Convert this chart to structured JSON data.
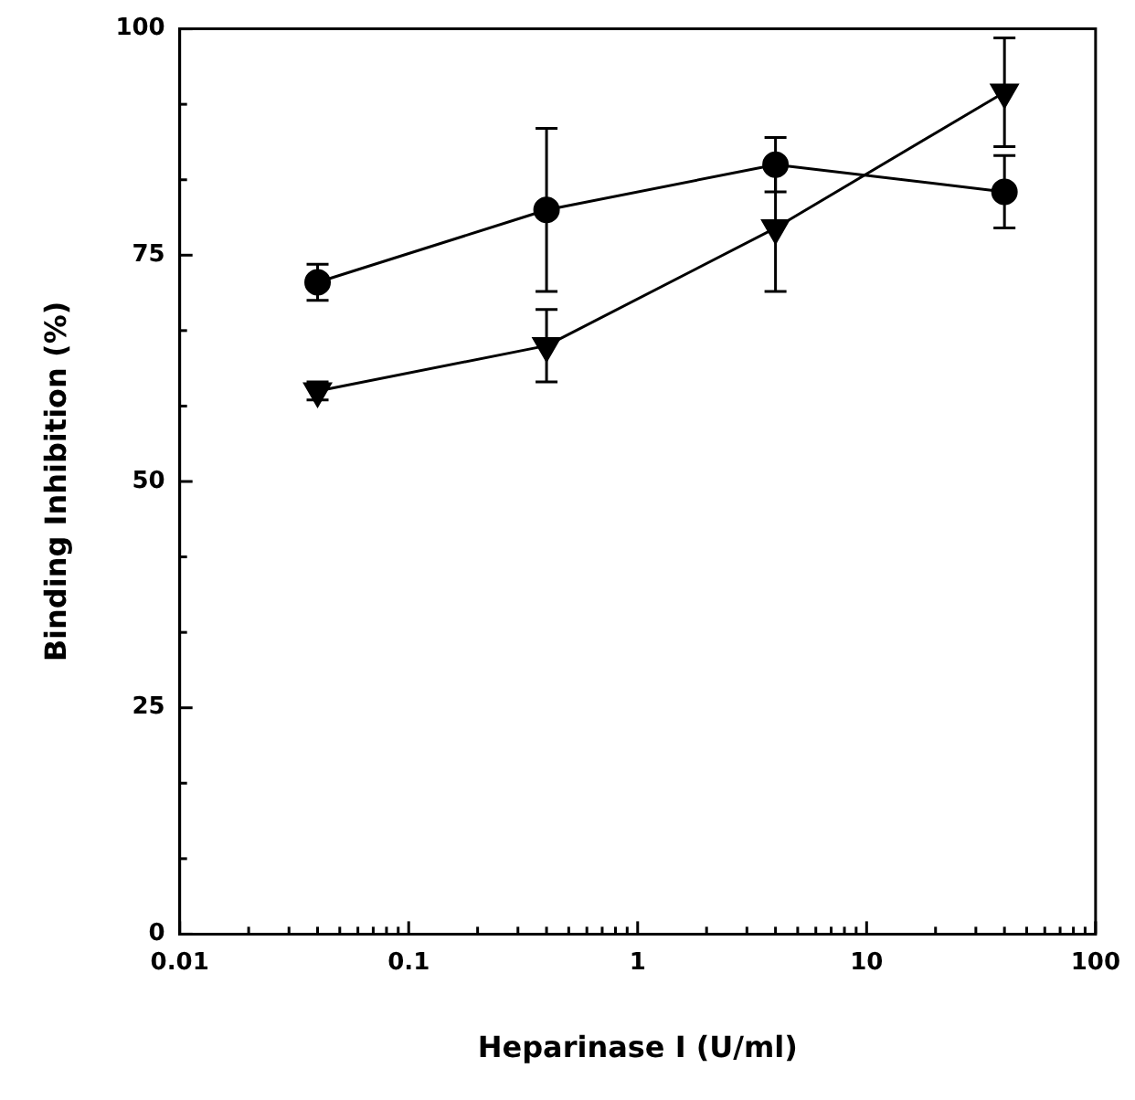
{
  "chart_data": {
    "type": "line",
    "xlabel": "Heparinase I (U/ml)",
    "ylabel": "Binding Inhibition (%)",
    "log": "x",
    "grid": false,
    "legend": false,
    "line_style": "solid",
    "x": [
      0.04,
      0.4,
      4,
      40
    ],
    "series": [
      {
        "color": "#000000",
        "marker": "circle",
        "values": [
          72,
          80,
          85,
          82
        ],
        "errors": [
          2,
          9,
          3,
          4
        ]
      },
      {
        "color": "#000000",
        "marker": "triangle",
        "values": [
          60,
          65,
          78,
          93
        ],
        "errors": [
          1,
          4,
          7,
          6
        ]
      }
    ],
    "xlim": [
      0.01,
      100
    ],
    "xticks": [
      0.01,
      {
        "value": 0.02,
        "label": null
      },
      {
        "value": 0.03,
        "label": null
      },
      {
        "value": 0.04,
        "label": null
      },
      {
        "value": 0.05,
        "label": null
      },
      {
        "value": 0.06,
        "label": null
      },
      {
        "value": 0.07,
        "label": null
      },
      {
        "value": 0.08,
        "label": null
      },
      {
        "value": 0.09,
        "label": null
      },
      0.1,
      {
        "value": 0.2,
        "label": null
      },
      {
        "value": 0.3,
        "label": null
      },
      {
        "value": 0.4,
        "label": null
      },
      {
        "value": 0.5,
        "label": null
      },
      {
        "value": 0.6,
        "label": null
      },
      {
        "value": 0.7,
        "label": null
      },
      {
        "value": 0.8,
        "label": null
      },
      {
        "value": 0.9,
        "label": null
      },
      1,
      {
        "value": 2,
        "label": null
      },
      {
        "value": 3,
        "label": null
      },
      {
        "value": 4,
        "label": null
      },
      {
        "value": 5,
        "label": null
      },
      {
        "value": 6,
        "label": null
      },
      {
        "value": 7,
        "label": null
      },
      {
        "value": 8,
        "label": null
      },
      {
        "value": 9,
        "label": null
      },
      10,
      {
        "value": 20,
        "label": null
      },
      {
        "value": 30,
        "label": null
      },
      {
        "value": 40,
        "label": null
      },
      {
        "value": 50,
        "label": null
      },
      {
        "value": 60,
        "label": null
      },
      {
        "value": 70,
        "label": null
      },
      {
        "value": 80,
        "label": null
      },
      {
        "value": 90,
        "label": null
      },
      100
    ],
    "ylim": [
      0,
      100
    ],
    "yticks": [
      0,
      {
        "value": 8.33,
        "label": null
      },
      {
        "value": 16.67,
        "label": null
      },
      25,
      {
        "value": 33.33,
        "label": null
      },
      {
        "value": 41.67,
        "label": null
      },
      50,
      {
        "value": 58.33,
        "label": null
      },
      {
        "value": 66.67,
        "label": null
      },
      75,
      {
        "value": 83.33,
        "label": null
      },
      {
        "value": 91.67,
        "label": null
      },
      100
    ]
  }
}
